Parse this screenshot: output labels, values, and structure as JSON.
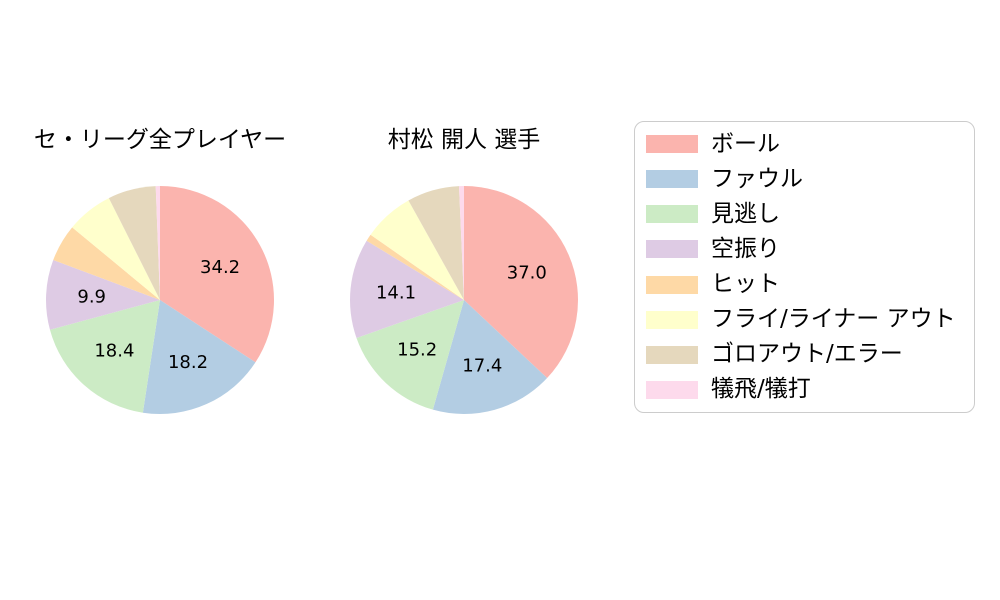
{
  "figure": {
    "background": "#ffffff",
    "text_color": "#000000"
  },
  "palette": [
    "#fbb4ae",
    "#b3cde3",
    "#ccebc5",
    "#decbe4",
    "#fed9a6",
    "#ffffcc",
    "#e5d8bd",
    "#fddaec"
  ],
  "legend": {
    "border_color": "#cccccc",
    "items": [
      {
        "name": "ball",
        "label": "ボール",
        "color": "#fbb4ae"
      },
      {
        "name": "foul",
        "label": "ファウル",
        "color": "#b3cde3"
      },
      {
        "name": "called-strike",
        "label": "見逃し",
        "color": "#ccebc5"
      },
      {
        "name": "swinging-strike",
        "label": "空振り",
        "color": "#decbe4"
      },
      {
        "name": "hit",
        "label": "ヒット",
        "color": "#fed9a6"
      },
      {
        "name": "fly-liner-out",
        "label": "フライ/ライナー アウト",
        "color": "#ffffcc"
      },
      {
        "name": "ground-out-error",
        "label": "ゴロアウト/エラー",
        "color": "#e5d8bd"
      },
      {
        "name": "sacrifice-fly-bunt",
        "label": "犠飛/犠打",
        "color": "#fddaec"
      }
    ]
  },
  "chart_data": [
    {
      "type": "pie",
      "title": "セ・リーグ全プレイヤー",
      "categories": [
        "ボール",
        "ファウル",
        "見逃し",
        "空振り",
        "ヒット",
        "フライ/ライナー アウト",
        "ゴロアウト/エラー",
        "犠飛/犠打"
      ],
      "values": [
        34.2,
        18.2,
        18.4,
        9.9,
        5.3,
        6.6,
        6.8,
        0.6
      ],
      "slice_labels": [
        "34.2",
        "18.2",
        "18.4",
        "9.9",
        "",
        "",
        "",
        ""
      ],
      "start_angle": "top",
      "direction": "clockwise",
      "label_radius_fraction": 0.6
    },
    {
      "type": "pie",
      "title": "村松 開人 選手",
      "categories": [
        "ボール",
        "ファウル",
        "見逃し",
        "空振り",
        "ヒット",
        "フライ/ライナー アウト",
        "ゴロアウト/エラー",
        "犠飛/犠打"
      ],
      "values": [
        37.0,
        17.4,
        15.2,
        14.1,
        1.0,
        7.2,
        7.4,
        0.7
      ],
      "slice_labels": [
        "37.0",
        "17.4",
        "15.2",
        "14.1",
        "",
        "",
        "",
        ""
      ],
      "start_angle": "top",
      "direction": "clockwise",
      "label_radius_fraction": 0.6
    }
  ]
}
